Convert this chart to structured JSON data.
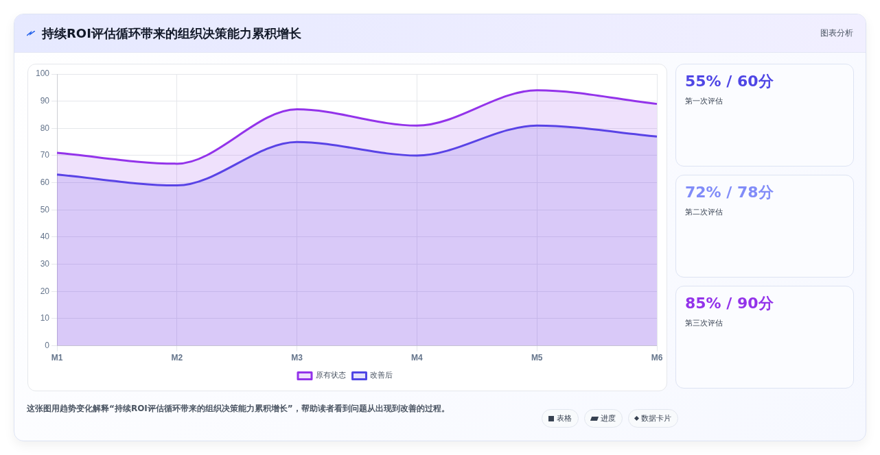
{
  "chart_data": [
    {
      "type": "area",
      "title": "持续ROI评估循环带来的组织决策能力累积增长",
      "categories": [
        "M1",
        "M2",
        "M3",
        "M4",
        "M5",
        "M6"
      ],
      "series": [
        {
          "name": "原有状态",
          "color": "#9333ea",
          "values": [
            71,
            67,
            87,
            81,
            94,
            89
          ]
        },
        {
          "name": "改善后",
          "color": "#4f46e5",
          "values": [
            63,
            59,
            75,
            70,
            81,
            77
          ]
        }
      ],
      "ylim": [
        0,
        100
      ],
      "yticks": [
        0,
        10,
        20,
        30,
        40,
        50,
        60,
        70,
        80,
        90,
        100
      ],
      "grid": true,
      "legend": "bottom",
      "marker": "none",
      "line_style": "solid",
      "annotations": [
        "图表分析",
        "这张图用趋势变化解释“持续ROI评估循环带来的组织决策能力累积增长”，帮助读者看到问题从出现到改善的过程。",
        "表格",
        "进度",
        "数据卡片"
      ]
    },
    {
      "type": "other",
      "annotations": [
        "55% / 60分",
        "第一次评估",
        "72% / 78分",
        "第二次评估",
        "85% / 90分",
        "第三次评估"
      ]
    }
  ]
}
